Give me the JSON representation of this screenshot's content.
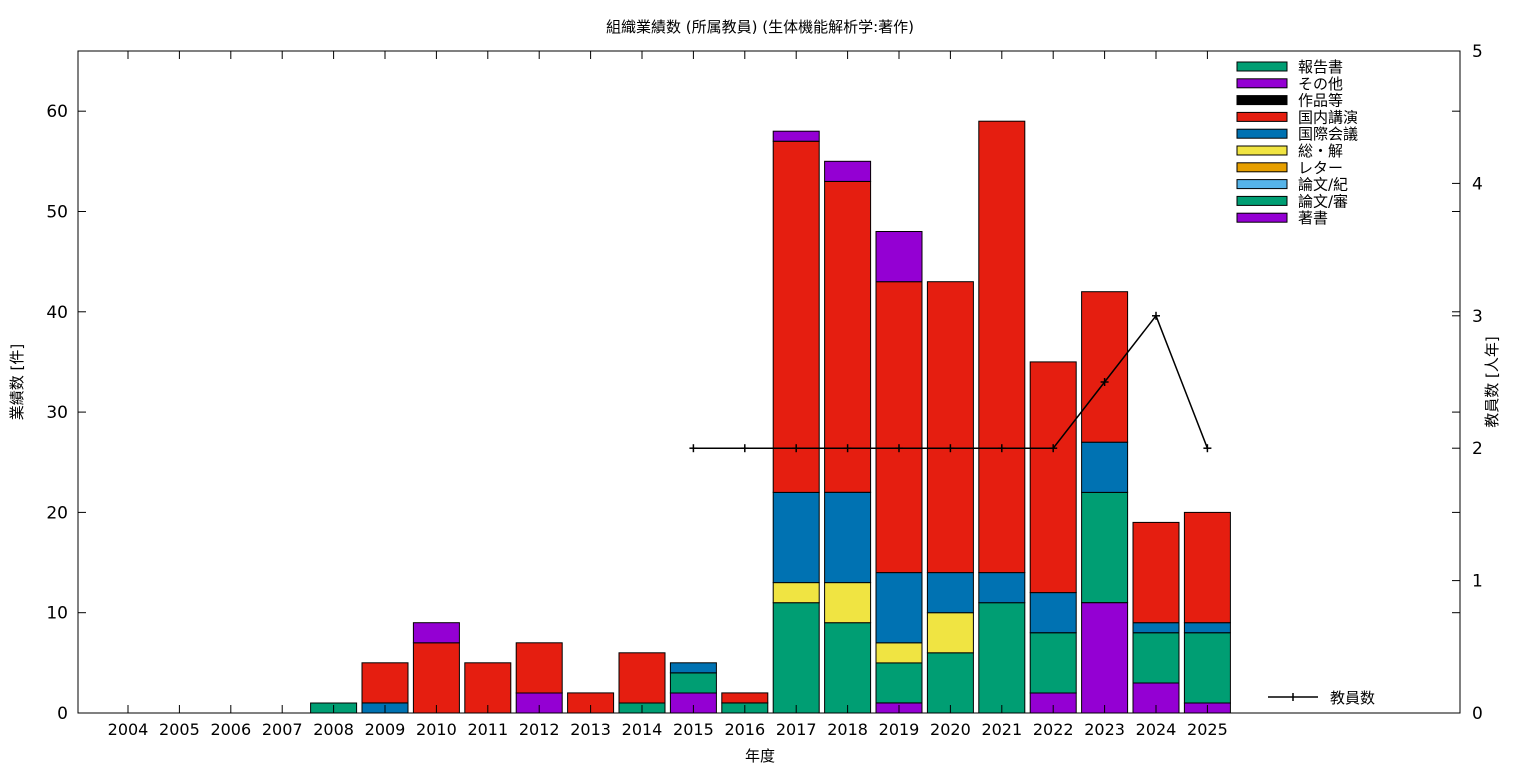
{
  "chart_data": {
    "type": "bar",
    "stacked": true,
    "title": "組織業績数 (所属教員) (生体機能解析学:著作)",
    "xlabel": "年度",
    "ylabel": "業績数 [件]",
    "y2label": "教員数 [人年]",
    "ylim": [
      0,
      66
    ],
    "y2lim": [
      0,
      5
    ],
    "yticks": [
      0,
      10,
      20,
      30,
      40,
      50,
      60
    ],
    "y2ticks": [
      0,
      1,
      2,
      3,
      4,
      5
    ],
    "grid": false,
    "legend_position": "top-right",
    "categories": [
      "2004",
      "2005",
      "2006",
      "2007",
      "2008",
      "2009",
      "2010",
      "2011",
      "2012",
      "2013",
      "2014",
      "2015",
      "2016",
      "2017",
      "2018",
      "2019",
      "2020",
      "2021",
      "2022",
      "2023",
      "2024",
      "2025"
    ],
    "series": [
      {
        "name": "著書",
        "color": "#9400d3",
        "values": [
          0,
          0,
          0,
          0,
          0,
          0,
          0,
          0,
          2,
          0,
          0,
          2,
          0,
          0,
          0,
          1,
          0,
          0,
          2,
          11,
          3,
          1
        ]
      },
      {
        "name": "論文/審",
        "color": "#009e73",
        "values": [
          0,
          0,
          0,
          0,
          1,
          0,
          0,
          0,
          0,
          0,
          1,
          2,
          1,
          11,
          9,
          4,
          6,
          11,
          6,
          11,
          5,
          7
        ]
      },
      {
        "name": "論文/紀",
        "color": "#56b4e9",
        "values": [
          0,
          0,
          0,
          0,
          0,
          0,
          0,
          0,
          0,
          0,
          0,
          0,
          0,
          0,
          0,
          0,
          0,
          0,
          0,
          0,
          0,
          0
        ]
      },
      {
        "name": "レター",
        "color": "#e69f00",
        "values": [
          0,
          0,
          0,
          0,
          0,
          0,
          0,
          0,
          0,
          0,
          0,
          0,
          0,
          0,
          0,
          0,
          0,
          0,
          0,
          0,
          0,
          0
        ]
      },
      {
        "name": "総・解",
        "color": "#f0e442",
        "values": [
          0,
          0,
          0,
          0,
          0,
          0,
          0,
          0,
          0,
          0,
          0,
          0,
          0,
          2,
          4,
          2,
          4,
          0,
          0,
          0,
          0,
          0
        ]
      },
      {
        "name": "国際会議",
        "color": "#0072b2",
        "values": [
          0,
          0,
          0,
          0,
          0,
          1,
          0,
          0,
          0,
          0,
          0,
          1,
          0,
          9,
          9,
          7,
          4,
          3,
          4,
          5,
          1,
          1
        ]
      },
      {
        "name": "国内講演",
        "color": "#e51e10",
        "values": [
          0,
          0,
          0,
          0,
          0,
          4,
          7,
          5,
          5,
          2,
          5,
          0,
          1,
          35,
          31,
          29,
          29,
          45,
          23,
          15,
          10,
          11
        ]
      },
      {
        "name": "作品等",
        "color": "#000000",
        "values": [
          0,
          0,
          0,
          0,
          0,
          0,
          0,
          0,
          0,
          0,
          0,
          0,
          0,
          0,
          0,
          0,
          0,
          0,
          0,
          0,
          0,
          0
        ]
      },
      {
        "name": "その他",
        "color": "#9400d3",
        "values": [
          0,
          0,
          0,
          0,
          0,
          0,
          2,
          0,
          0,
          0,
          0,
          0,
          0,
          1,
          2,
          5,
          0,
          0,
          0,
          0,
          0,
          0
        ]
      },
      {
        "name": "報告書",
        "color": "#009e73",
        "values": [
          0,
          0,
          0,
          0,
          0,
          0,
          0,
          0,
          0,
          0,
          0,
          0,
          0,
          0,
          0,
          0,
          0,
          0,
          0,
          0,
          0,
          0
        ]
      }
    ],
    "legend_order": [
      "報告書",
      "その他",
      "作品等",
      "国内講演",
      "国際会議",
      "総・解",
      "レター",
      "論文/紀",
      "論文/審",
      "著書"
    ],
    "line": {
      "name": "教員数",
      "axis": "y2",
      "x": [
        "2015",
        "2016",
        "2017",
        "2018",
        "2019",
        "2020",
        "2021",
        "2022",
        "2023",
        "2024",
        "2025"
      ],
      "values": [
        2,
        2,
        2,
        2,
        2,
        2,
        2,
        2,
        2.5,
        3,
        2
      ]
    }
  }
}
